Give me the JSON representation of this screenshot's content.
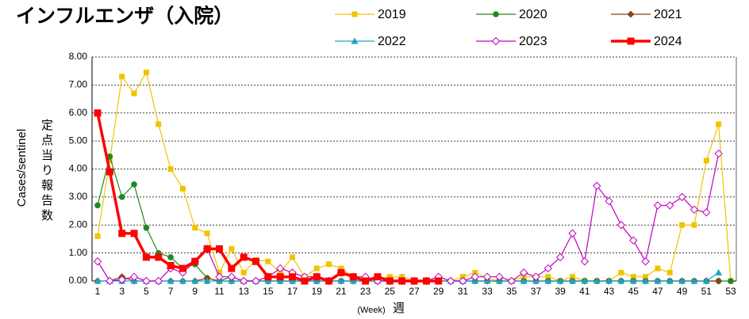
{
  "chart_data": {
    "type": "line",
    "title": "インフルエンザ（入院）",
    "y_label": "Cases/sentinel",
    "y_label_ja": "定点当り報告数",
    "x_label": "(Week)",
    "x_label_ja": "週",
    "categories": [
      1,
      null,
      3,
      null,
      5,
      null,
      7,
      null,
      9,
      null,
      11,
      null,
      13,
      null,
      15,
      null,
      17,
      null,
      19,
      null,
      21,
      null,
      23,
      null,
      25,
      null,
      27,
      null,
      29,
      null,
      31,
      null,
      33,
      null,
      35,
      null,
      37,
      null,
      39,
      null,
      41,
      null,
      43,
      null,
      45,
      null,
      47,
      null,
      49,
      null,
      51,
      null,
      53
    ],
    "ylim": [
      0,
      8
    ],
    "yticks": [
      {
        "value": 0,
        "label": "0.00"
      },
      {
        "value": 1,
        "label": "1.00"
      },
      {
        "value": 2,
        "label": "2.00"
      },
      {
        "value": 3,
        "label": "3.00"
      },
      {
        "value": 4,
        "label": "4.00"
      },
      {
        "value": 5,
        "label": "5.00"
      },
      {
        "value": 6,
        "label": "6.00"
      },
      {
        "value": 7,
        "label": "7.00"
      },
      {
        "value": 8,
        "label": "8.00"
      }
    ],
    "grid": true,
    "series": [
      {
        "name": "2019",
        "color": "#f2c200",
        "marker": "square",
        "values": [
          1.6,
          4.3,
          7.3,
          6.7,
          7.45,
          5.6,
          4.0,
          3.3,
          1.9,
          1.7,
          0.3,
          1.15,
          0.3,
          0.75,
          0.7,
          0.3,
          0.85,
          0.15,
          0.45,
          0.6,
          0.45,
          0.15,
          0.1,
          0.1,
          0.15,
          0.15,
          0,
          0,
          0,
          0,
          0.15,
          0.3,
          0.1,
          0,
          0,
          0.15,
          0.15,
          0.15,
          0,
          0.15,
          0,
          0,
          0,
          0.3,
          0.15,
          0.15,
          0.45,
          0.3,
          2.0,
          2.0,
          4.3,
          5.6,
          0
        ]
      },
      {
        "name": "2020",
        "color": "#1e8a1e",
        "marker": "circle",
        "values": [
          2.7,
          4.45,
          3.0,
          3.45,
          1.9,
          1.0,
          0.85,
          0.45,
          0.6,
          0.1,
          0,
          0.15,
          0,
          0,
          0,
          0,
          0,
          0,
          0,
          0,
          0,
          0,
          0,
          0,
          0,
          0,
          0,
          0,
          0,
          0,
          0,
          0,
          0,
          0,
          0,
          0,
          0,
          0,
          0,
          0,
          0,
          0,
          0,
          0,
          0,
          0,
          0,
          0,
          0,
          0,
          0,
          0,
          0
        ]
      },
      {
        "name": "2021",
        "color": "#8b4513",
        "marker": "diamond",
        "values": [
          0,
          0,
          0.15,
          0,
          0,
          0,
          0,
          0,
          0,
          0.1,
          0,
          0,
          0,
          0,
          0,
          0,
          0,
          0,
          0,
          0,
          0,
          0,
          0,
          0,
          0,
          0,
          0,
          0,
          0,
          0,
          0,
          0,
          0,
          0,
          0,
          0,
          0,
          0,
          0,
          0,
          0,
          0,
          0,
          0,
          0,
          0,
          0,
          0,
          0,
          0,
          0,
          0,
          null
        ]
      },
      {
        "name": "2022",
        "color": "#1ba3c6",
        "marker": "triangle",
        "values": [
          0,
          0,
          0,
          0,
          0,
          0,
          0,
          0,
          0,
          0,
          0,
          0,
          0,
          0,
          0,
          0,
          0,
          0,
          0,
          0,
          0,
          0,
          0,
          0,
          0,
          0,
          0,
          0,
          0,
          0,
          0,
          0,
          0,
          0,
          0,
          0,
          0,
          0,
          0,
          0,
          0,
          0,
          0,
          0,
          0,
          0,
          0,
          0,
          0,
          0,
          0,
          0.3,
          null
        ]
      },
      {
        "name": "2023",
        "color": "#c000c0",
        "marker": "open-diamond",
        "values": [
          0.7,
          0,
          0.05,
          0.15,
          0,
          0,
          0.45,
          0.3,
          0.7,
          1.15,
          0.15,
          0.15,
          0,
          0,
          0.15,
          0.45,
          0.3,
          0.15,
          0.15,
          0,
          0.3,
          0.15,
          0.15,
          0,
          0,
          0,
          0,
          0,
          0.15,
          0,
          0,
          0.15,
          0.15,
          0.15,
          0,
          0.3,
          0.15,
          0.45,
          0.85,
          1.7,
          0.7,
          3.4,
          2.85,
          2.0,
          1.45,
          0.7,
          2.7,
          2.7,
          3.0,
          2.55,
          2.45,
          4.55,
          null
        ]
      },
      {
        "name": "2024",
        "color": "#ff0000",
        "marker": "square",
        "width": 3.5,
        "values": [
          6.0,
          3.9,
          1.7,
          1.7,
          0.85,
          0.85,
          0.55,
          0.45,
          0.7,
          1.15,
          1.15,
          0.45,
          0.85,
          0.7,
          0.15,
          0.15,
          0.15,
          0,
          0.15,
          0,
          0.3,
          0.15,
          0,
          0.15,
          0,
          0,
          0,
          0,
          0,
          null,
          null,
          null,
          null,
          null,
          null,
          null,
          null,
          null,
          null,
          null,
          null,
          null,
          null,
          null,
          null,
          null,
          null,
          null,
          null,
          null,
          null,
          null,
          null
        ]
      }
    ]
  }
}
